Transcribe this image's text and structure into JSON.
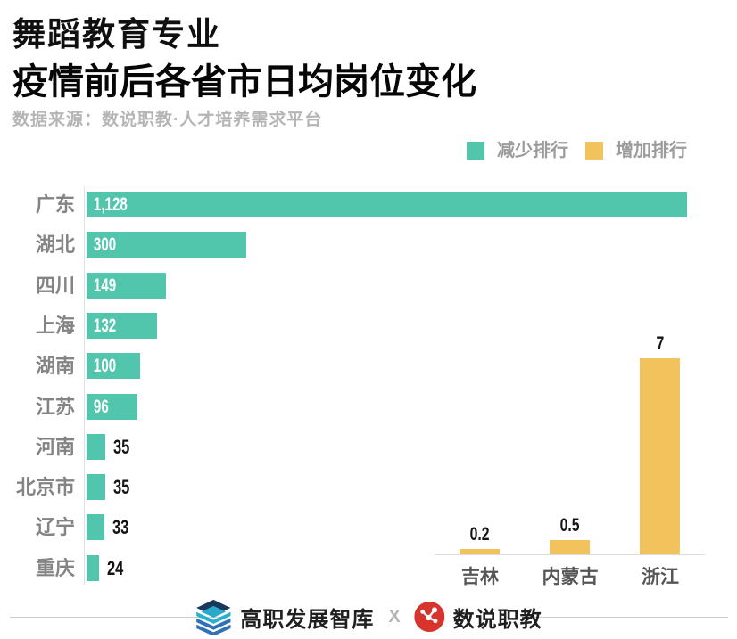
{
  "header": {
    "category": "舞蹈教育专业",
    "title": "疫情前后各省市日均岗位变化",
    "source": "数据来源：数说职教·人才培养需求平台"
  },
  "legend": [
    {
      "label": "减少排行",
      "color": "#52C5AD"
    },
    {
      "label": "增加排行",
      "color": "#F2C35C"
    }
  ],
  "chart_data": {
    "type": "bar",
    "title": "疫情前后各省市日均岗位变化",
    "grid": false,
    "legend_position": "top-right",
    "series": [
      {
        "name": "减少排行",
        "orientation": "horizontal",
        "color": "#52C5AD",
        "categories": [
          "广东",
          "湖北",
          "四川",
          "上海",
          "湖南",
          "江苏",
          "河南",
          "北京市",
          "辽宁",
          "重庆"
        ],
        "values": [
          1128,
          300,
          149,
          132,
          100,
          96,
          35,
          35,
          33,
          24
        ],
        "value_labels": [
          "1,128",
          "300",
          "149",
          "132",
          "100",
          "96",
          "35",
          "35",
          "33",
          "24"
        ],
        "xlim": [
          0,
          1128
        ]
      },
      {
        "name": "增加排行",
        "orientation": "vertical",
        "color": "#F2C35C",
        "categories": [
          "吉林",
          "内蒙古",
          "浙江"
        ],
        "values": [
          0.2,
          0.5,
          7
        ],
        "value_labels": [
          "0.2",
          "0.5",
          "7"
        ],
        "ylim": [
          0,
          7
        ]
      }
    ]
  },
  "footer": {
    "brand_left": "高职发展智库",
    "separator": "X",
    "brand_right": "数说职教"
  }
}
